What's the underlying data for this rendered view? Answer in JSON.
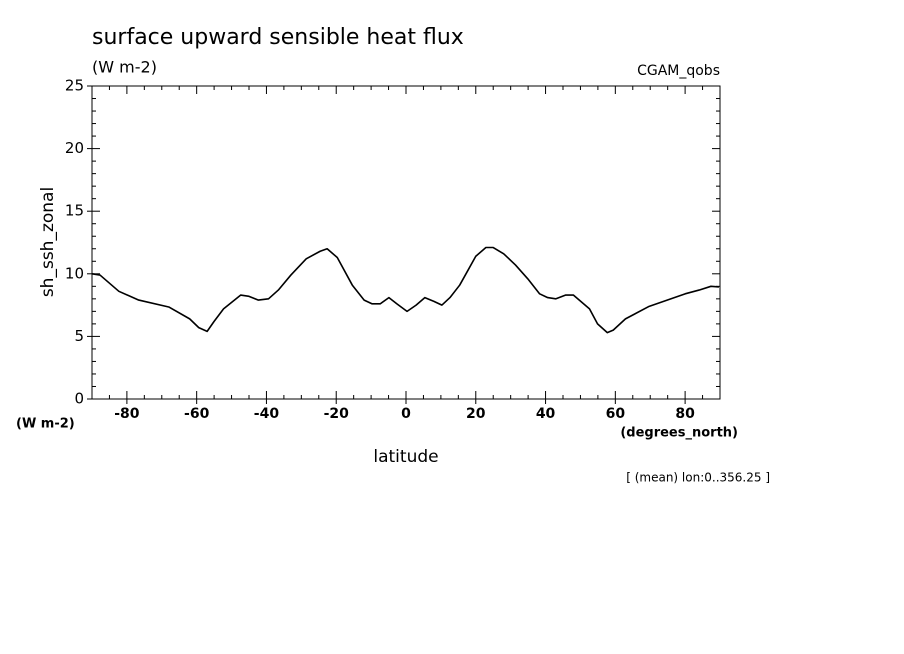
{
  "chart_data": {
    "type": "line",
    "title": "surface upward sensible heat flux",
    "subtitle": "(W m-2)",
    "dataset_label": "CGAM_qobs",
    "ylabel": "sh_ssh_zonal",
    "y_units": "(W m-2)",
    "xlabel": "latitude",
    "x_units": "(degrees_north)",
    "footnote": "[ (mean) lon:0..356.25 ]",
    "color": "#000000",
    "xlim": [
      -90,
      90
    ],
    "ylim": [
      0,
      25
    ],
    "xticks": [
      -80,
      -60,
      -40,
      -20,
      0,
      20,
      40,
      60,
      80
    ],
    "yticks": [
      0,
      5,
      10,
      15,
      20,
      25
    ],
    "xminorticks": [
      -90,
      -85,
      -75,
      -70,
      -65,
      -55,
      -50,
      -45,
      -35,
      -30,
      -25,
      -15,
      -10,
      -5,
      5,
      10,
      15,
      25,
      30,
      35,
      45,
      50,
      55,
      65,
      70,
      75,
      85,
      90
    ],
    "yminorticks": [
      1,
      2,
      3,
      4,
      6,
      7,
      8,
      9,
      11,
      12,
      13,
      14,
      16,
      17,
      18,
      19,
      21,
      22,
      23,
      24
    ],
    "x": [
      -90,
      -87.7,
      -82.3,
      -76.6,
      -68,
      -62,
      -59.4,
      -57,
      -55,
      -52.3,
      -47.4,
      -45,
      -42.3,
      -39.4,
      -36.6,
      -33,
      -28.6,
      -24.6,
      -22.6,
      -19.7,
      -15.4,
      -12,
      -9.7,
      -7.4,
      -4.9,
      -2.6,
      0.3,
      2.9,
      5.4,
      8,
      10.3,
      12.6,
      15.4,
      17,
      20,
      22.9,
      25,
      28,
      31.4,
      34.9,
      38.3,
      40.6,
      42.9,
      45.7,
      48,
      52.6,
      54.9,
      57.7,
      59.4,
      62.9,
      69.7,
      80,
      84,
      87.4,
      89.7
    ],
    "values": [
      10.0,
      9.9,
      8.6,
      7.9,
      7.35,
      6.4,
      5.7,
      5.4,
      6.2,
      7.2,
      8.3,
      8.2,
      7.9,
      8.0,
      8.7,
      9.9,
      11.2,
      11.8,
      12.0,
      11.3,
      9.1,
      7.9,
      7.6,
      7.6,
      8.1,
      7.6,
      7.0,
      7.5,
      8.1,
      7.8,
      7.5,
      8.1,
      9.1,
      9.9,
      11.4,
      12.1,
      12.1,
      11.6,
      10.7,
      9.6,
      8.4,
      8.1,
      8.0,
      8.3,
      8.3,
      7.2,
      6.0,
      5.3,
      5.5,
      6.4,
      7.4,
      8.4,
      8.7,
      9.0,
      8.95
    ]
  }
}
